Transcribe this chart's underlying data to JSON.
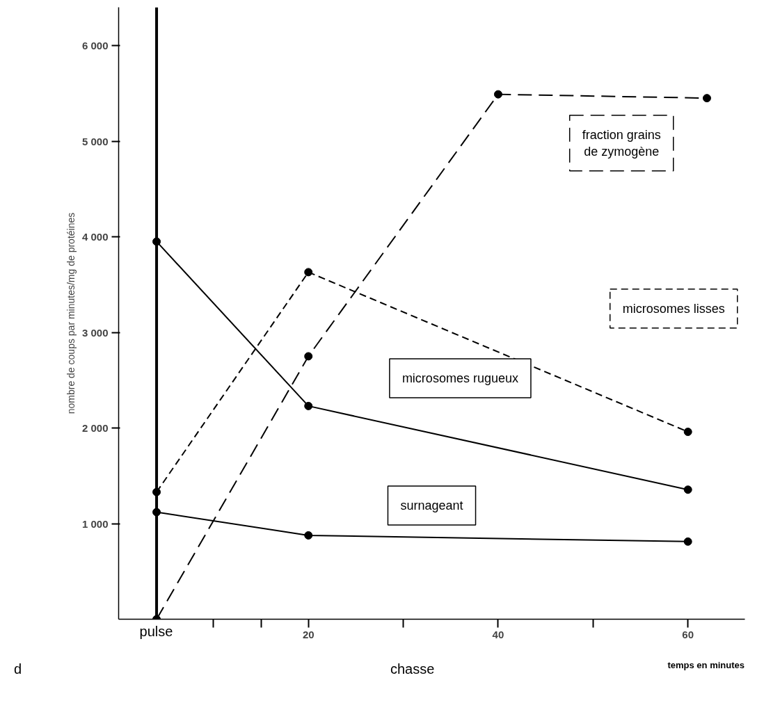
{
  "chart_data": {
    "type": "line",
    "xlabel": "temps en minutes",
    "ylabel": "nombre de coups par minutes/mg de protéines",
    "x": [
      4,
      20,
      60
    ],
    "series": [
      {
        "name": "fraction grains de zymogène",
        "color": "#000000",
        "line_style": "dashed",
        "x": [
          4,
          20,
          40,
          62
        ],
        "values": [
          0,
          2750,
          5490,
          5450
        ]
      },
      {
        "name": "microsomes lisses",
        "color": "#000000",
        "line_style": "dotted",
        "values": [
          1330,
          3630,
          1960
        ]
      },
      {
        "name": "microsomes rugueux",
        "color": "#000000",
        "line_style": "solid",
        "values": [
          3950,
          2230,
          1355
        ]
      },
      {
        "name": "surnageant",
        "color": "#000000",
        "line_style": "solid",
        "values": [
          1120,
          877,
          812
        ]
      }
    ],
    "marker": "circle",
    "legend": false,
    "grid": false,
    "xlim": [
      0,
      66
    ],
    "ylim": [
      0,
      6400
    ],
    "xticks": [
      {
        "value": 10,
        "label": null
      },
      {
        "value": 15,
        "label": null
      },
      20,
      {
        "value": 30,
        "label": null
      },
      40,
      {
        "value": 50,
        "label": null
      },
      60
    ],
    "yticks": [
      {
        "value": 1000,
        "label": "1 000"
      },
      {
        "value": 2000,
        "label": "2 000"
      },
      {
        "value": 3000,
        "label": "3 000"
      },
      {
        "value": 4000,
        "label": "4 000"
      },
      {
        "value": 5000,
        "label": "5 000"
      },
      {
        "value": 6000,
        "label": "6 000"
      }
    ],
    "ref_lines": [
      {
        "axis": "x",
        "value": 4,
        "label": "pulse",
        "color": "#000000"
      }
    ],
    "annotations": [
      "d",
      "chasse"
    ]
  }
}
